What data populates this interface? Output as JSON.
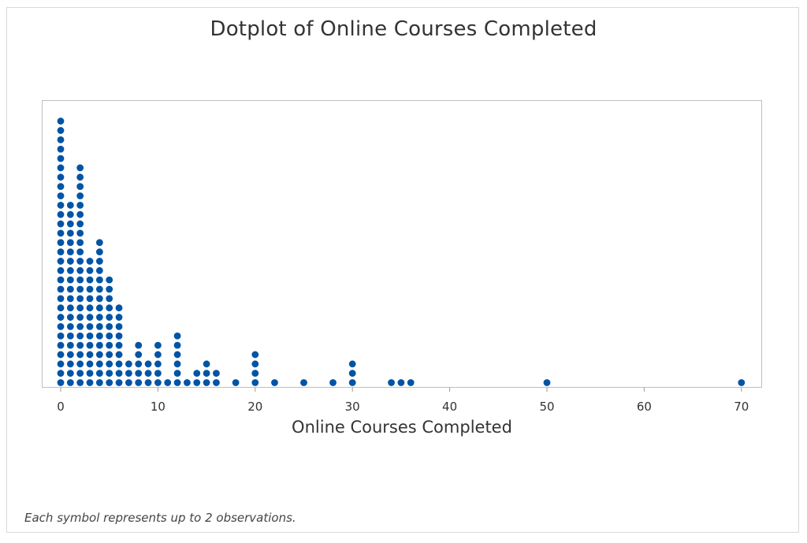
{
  "chart": {
    "title": "Dotplot of Online Courses Completed",
    "xlabel": "Online Courses Completed",
    "footnote": "Each symbol represents up to 2 observations.",
    "dot_color": "#0054A6",
    "frame_color": "#bfbfbf"
  },
  "chart_data": {
    "type": "scatter",
    "subtype": "dotplot",
    "title": "Dotplot of Online Courses Completed",
    "xlabel": "Online Courses Completed",
    "ylabel": "",
    "xlim": [
      -2,
      72
    ],
    "xticks": [
      0,
      10,
      20,
      30,
      40,
      50,
      60,
      70
    ],
    "grid": false,
    "legend": null,
    "annotation": "Each symbol represents up to 2 observations.",
    "symbol_represents": 2,
    "x": [
      0,
      1,
      2,
      3,
      4,
      5,
      6,
      7,
      8,
      9,
      10,
      11,
      12,
      13,
      14,
      15,
      16,
      18,
      20,
      22,
      25,
      28,
      30,
      34,
      35,
      36,
      50,
      70
    ],
    "dot_counts": [
      29,
      20,
      24,
      14,
      16,
      12,
      9,
      3,
      5,
      3,
      5,
      1,
      6,
      1,
      2,
      3,
      2,
      1,
      4,
      1,
      1,
      1,
      3,
      1,
      1,
      1,
      1,
      1
    ]
  }
}
